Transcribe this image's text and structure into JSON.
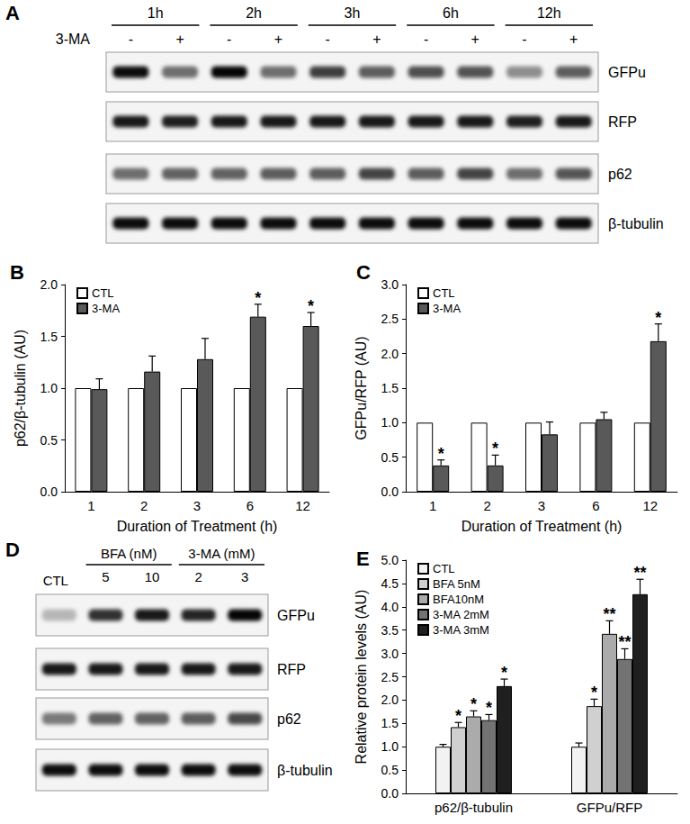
{
  "chart_data": [
    {
      "type": "bar",
      "title": "B",
      "xlabel": "Duration of Treatment (h)",
      "ylabel": "p62/β-tubulin (AU)",
      "categories": [
        "1",
        "2",
        "3",
        "6",
        "12"
      ],
      "series": [
        {
          "name": "CTL",
          "color": "#ffffff",
          "values": [
            1.0,
            1.0,
            1.0,
            1.0,
            1.0
          ]
        },
        {
          "name": "3-MA",
          "color": "#595959",
          "values": [
            0.99,
            1.16,
            1.28,
            1.69,
            1.6
          ],
          "errors": [
            0.1,
            0.15,
            0.2,
            0.12,
            0.13
          ],
          "significance": [
            null,
            null,
            null,
            "*",
            "*"
          ]
        }
      ],
      "ylim": [
        0,
        2
      ],
      "yticks": [
        {
          "value": 0,
          "label": "0.0"
        },
        0.5,
        {
          "value": 1,
          "label": "1.0"
        },
        1.5,
        {
          "value": 2,
          "label": "2.0"
        }
      ],
      "grid": false,
      "legend": "upper left"
    },
    {
      "type": "bar",
      "title": "C",
      "xlabel": "Duration of Treatment (h)",
      "ylabel": "GFPu/RFP (AU)",
      "categories": [
        "1",
        "2",
        "3",
        "6",
        "12"
      ],
      "series": [
        {
          "name": "CTL",
          "color": "#ffffff",
          "values": [
            1.0,
            1.0,
            1.0,
            1.0,
            1.0
          ]
        },
        {
          "name": "3-MA",
          "color": "#595959",
          "values": [
            0.38,
            0.38,
            0.83,
            1.05,
            2.18
          ],
          "errors": [
            0.08,
            0.15,
            0.18,
            0.1,
            0.25
          ],
          "significance": [
            "*",
            "*",
            null,
            null,
            "*"
          ]
        }
      ],
      "ylim": [
        0,
        3
      ],
      "yticks": [
        {
          "value": 0,
          "label": "0.0"
        },
        0.5,
        {
          "value": 1,
          "label": "1.0"
        },
        1.5,
        {
          "value": 2,
          "label": "2.0"
        },
        2.5,
        {
          "value": 3,
          "label": "3.0"
        }
      ],
      "grid": false,
      "legend": "upper left"
    },
    {
      "type": "bar",
      "title": "E",
      "ylabel": "Relative protein levels (AU)",
      "categories": [
        "p62/β-tubulin",
        "GFPu/RFP"
      ],
      "series": [
        {
          "name": "CTL",
          "color": "#f2f2f2",
          "values": [
            1.0,
            1.0
          ],
          "errors": [
            0.05,
            0.08
          ],
          "significance": [
            null,
            null
          ]
        },
        {
          "name": "BFA 5nM",
          "color": "#d0d0d0",
          "values": [
            1.42,
            1.87
          ],
          "errors": [
            0.1,
            0.15
          ],
          "significance": [
            "*",
            "*"
          ]
        },
        {
          "name": "BFA10nM",
          "color": "#ababab",
          "values": [
            1.65,
            3.42
          ],
          "errors": [
            0.12,
            0.28
          ],
          "significance": [
            "*",
            "**"
          ]
        },
        {
          "name": "3-MA 2mM",
          "color": "#737373",
          "values": [
            1.57,
            2.88
          ],
          "errors": [
            0.12,
            0.22
          ],
          "significance": [
            "*",
            "**"
          ]
        },
        {
          "name": "3-MA 3mM",
          "color": "#1f1f1f",
          "values": [
            2.3,
            4.27
          ],
          "errors": [
            0.15,
            0.32
          ],
          "significance": [
            "*",
            "**"
          ]
        }
      ],
      "ylim": [
        0,
        5
      ],
      "yticks": [
        {
          "value": 0,
          "label": "0.0"
        },
        0.5,
        {
          "value": 1,
          "label": "1.0"
        },
        1.5,
        {
          "value": 2,
          "label": "2.0"
        },
        2.5,
        {
          "value": 3,
          "label": "3.0"
        },
        3.5,
        {
          "value": 4,
          "label": "4.0"
        },
        4.5,
        {
          "value": 5,
          "label": "5.0"
        }
      ],
      "grid": false,
      "legend": "upper left"
    }
  ],
  "blot_A": {
    "panel": "A",
    "treatment": "3-MA",
    "groups": [
      "1h",
      "2h",
      "3h",
      "6h",
      "12h"
    ],
    "lane_signs": [
      "-",
      "+",
      "-",
      "+",
      "-",
      "+",
      "-",
      "+",
      "-",
      "+"
    ],
    "rows": [
      {
        "label": "GFPu",
        "intensity": [
          0.95,
          0.55,
          0.98,
          0.55,
          0.75,
          0.62,
          0.68,
          0.66,
          0.42,
          0.62
        ]
      },
      {
        "label": "RFP",
        "intensity": [
          0.9,
          0.88,
          0.9,
          0.9,
          0.9,
          0.9,
          0.9,
          0.9,
          0.88,
          0.9
        ]
      },
      {
        "label": "p62",
        "intensity": [
          0.55,
          0.6,
          0.6,
          0.62,
          0.62,
          0.72,
          0.62,
          0.72,
          0.55,
          0.65
        ]
      },
      {
        "label": "β-tubulin",
        "intensity": [
          0.95,
          0.95,
          0.95,
          0.95,
          0.95,
          0.95,
          0.95,
          0.95,
          0.95,
          0.95
        ]
      }
    ]
  },
  "blot_D": {
    "panel": "D",
    "control": "CTL",
    "groups": [
      {
        "label": "BFA (nM)",
        "doses": [
          "5",
          "10"
        ]
      },
      {
        "label": "3-MA (mM)",
        "doses": [
          "2",
          "3"
        ]
      }
    ],
    "rows": [
      {
        "label": "GFPu",
        "intensity": [
          0.25,
          0.8,
          0.9,
          0.85,
          0.98
        ]
      },
      {
        "label": "RFP",
        "intensity": [
          0.9,
          0.9,
          0.9,
          0.9,
          0.9
        ]
      },
      {
        "label": "p62",
        "intensity": [
          0.5,
          0.6,
          0.6,
          0.62,
          0.7
        ]
      },
      {
        "label": "β-tubulin",
        "intensity": [
          0.95,
          0.95,
          0.95,
          0.95,
          0.95
        ]
      }
    ]
  }
}
